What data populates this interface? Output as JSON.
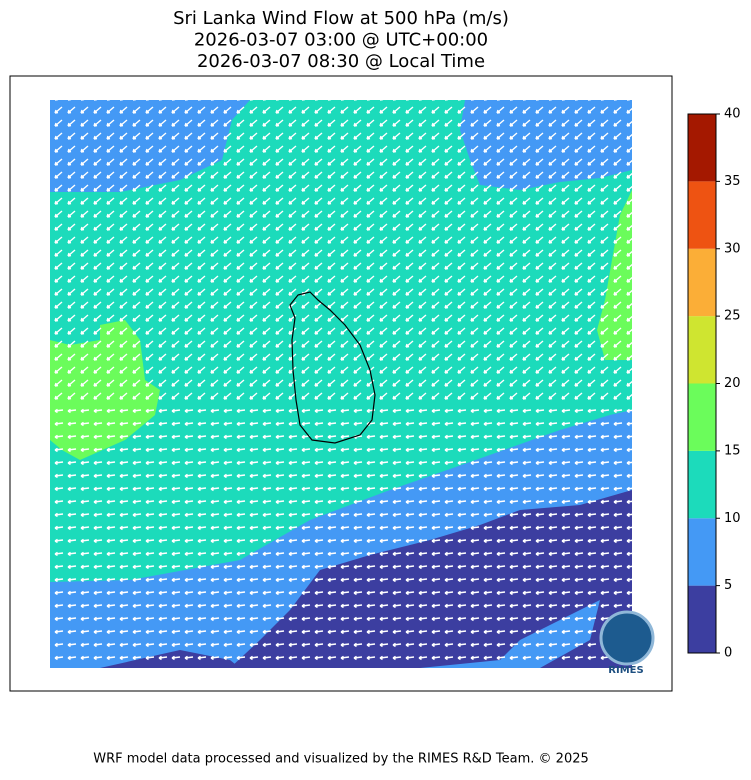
{
  "title": {
    "lines": [
      "Sri Lanka Wind Flow at 500 hPa (m/s)",
      "2026-03-07 03:00 @ UTC+00:00",
      "2026-03-07 08:30 @ Local Time"
    ]
  },
  "colorbar": {
    "ticks": [
      0,
      5,
      10,
      15,
      20,
      25,
      30,
      35,
      40
    ],
    "colors": [
      "#3c3ea0",
      "#4499f5",
      "#1cdbbb",
      "#6bfc5b",
      "#cfe530",
      "#fbae37",
      "#ee5312",
      "#a41800"
    ]
  },
  "logo": {
    "text": "RIMES"
  },
  "footer": "WRF model data processed and visualized by the RIMES R&D Team. © 2025"
}
